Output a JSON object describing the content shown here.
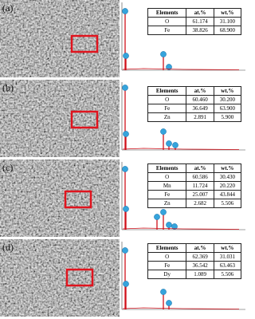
{
  "panels": [
    {
      "label": "(a)",
      "table": {
        "header": [
          "Elements",
          "at.%",
          "wt.%"
        ],
        "rows": [
          [
            "O",
            "61.174",
            "31.100"
          ],
          [
            "Fe",
            "38.826",
            "68.900"
          ]
        ]
      }
    },
    {
      "label": "(b)",
      "table": {
        "header": [
          "Elements",
          "at.%",
          "wt.%"
        ],
        "rows": [
          [
            "O",
            "60.460",
            "30.200"
          ],
          [
            "Fe",
            "36.649",
            "63.900"
          ],
          [
            "Zn",
            "2.891",
            "5.900"
          ]
        ]
      }
    },
    {
      "label": "(c)",
      "table": {
        "header": [
          "Elements",
          "at.%",
          "wt.%"
        ],
        "rows": [
          [
            "O",
            "60.586",
            "30.430"
          ],
          [
            "Mn",
            "11.724",
            "20.220"
          ],
          [
            "Fe",
            "25.007",
            "43.844"
          ],
          [
            "Zn",
            "2.682",
            "5.506"
          ]
        ]
      }
    },
    {
      "label": "(d)",
      "table": {
        "header": [
          "Elements",
          "at.%",
          "wt.%"
        ],
        "rows": [
          [
            "O",
            "62.369",
            "31.031"
          ],
          [
            "Fe",
            "36.542",
            "63.463"
          ],
          [
            "Dy",
            "1.089",
            "5.506"
          ]
        ]
      }
    }
  ]
}
